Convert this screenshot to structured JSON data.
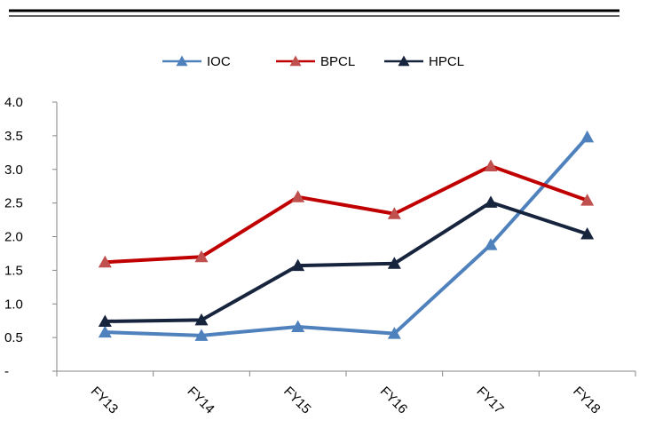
{
  "chart_data": {
    "type": "line",
    "categories": [
      "FY13",
      "FY14",
      "FY15",
      "FY16",
      "FY17",
      "FY18"
    ],
    "series": [
      {
        "name": "IOC",
        "color": "#4f81bd",
        "values": [
          0.58,
          0.53,
          0.66,
          0.56,
          1.88,
          3.48
        ]
      },
      {
        "name": "BPCL",
        "color": "#c00000",
        "marker_color": "#c0504d",
        "values": [
          1.62,
          1.7,
          2.59,
          2.34,
          3.05,
          2.54
        ]
      },
      {
        "name": "HPCL",
        "color": "#17243d",
        "values": [
          0.74,
          0.76,
          1.57,
          1.6,
          2.51,
          2.04
        ]
      }
    ],
    "y_ticks": [
      "-",
      "0.5",
      "1.0",
      "1.5",
      "2.0",
      "2.5",
      "3.0",
      "3.5",
      "4.0"
    ],
    "ylim": [
      0,
      4.0
    ],
    "marker": "triangle",
    "legend_position": "top-center",
    "grid": false,
    "title": "",
    "xlabel": "",
    "ylabel": ""
  }
}
